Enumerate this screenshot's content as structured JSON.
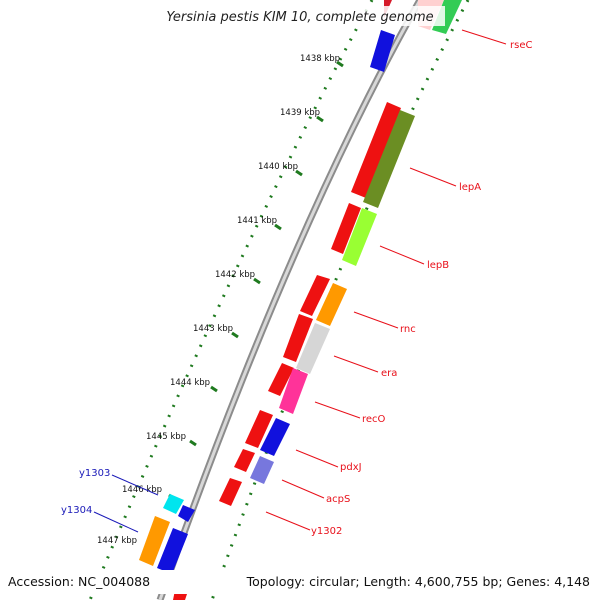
{
  "title": "Yersinia pestis KIM 10, complete genome",
  "accession": "Accession: NC_004088",
  "topology": "Topology: circular; Length: 4,600,755 bp; Genes: 4,148",
  "kbp_labels": [
    "1438 kbp",
    "1439 kbp",
    "1440 kbp",
    "1441 kbp",
    "1442 kbp",
    "1443 kbp",
    "1444 kbp",
    "1445 kbp",
    "1446 kbp",
    "1447 kbp"
  ],
  "gene_labels_right": [
    "rseC",
    "lepA",
    "lepB",
    "rnc",
    "era",
    "recO",
    "pdxJ",
    "acpS",
    "y1302"
  ],
  "gene_labels_left": [
    "y1303",
    "y1304"
  ],
  "colors": {
    "label_red": "#e8101a",
    "label_blue": "#1a1ab8",
    "backbone": "#9a9a9a",
    "tick_green": "#1f7a1f"
  }
}
